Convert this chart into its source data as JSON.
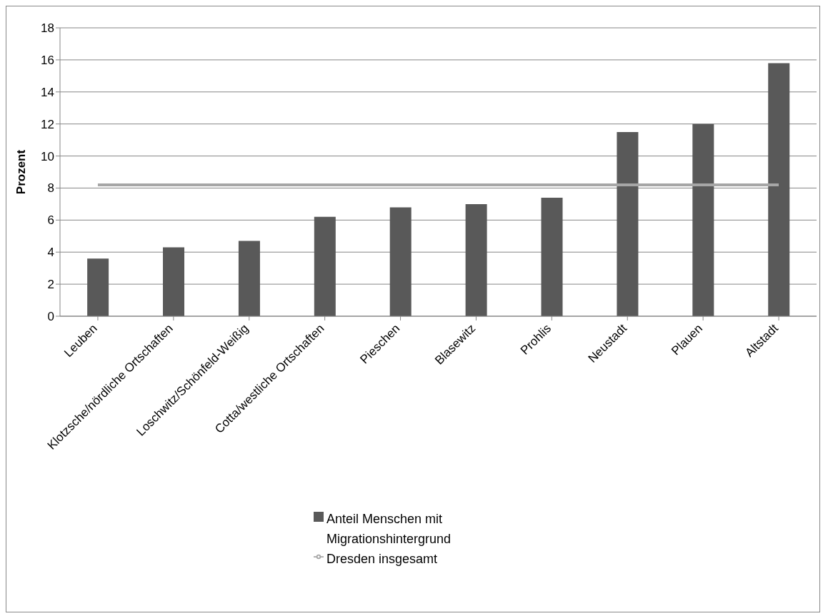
{
  "chart_data": {
    "type": "bar",
    "ylabel": "Prozent",
    "categories": [
      "Leuben",
      "Klotzsche/nördliche Ortschaften",
      "Loschwitz/Schönfeld-Weißig",
      "Cotta/westliche Ortschaften",
      "Pieschen",
      "Blasewitz",
      "Prohlis",
      "Neustadt",
      "Plauen",
      "Altstadt"
    ],
    "series": [
      {
        "name": "Anteil Menschen mit Migrationshintergrund",
        "color": "#595959",
        "values": [
          3.6,
          4.3,
          4.7,
          6.2,
          6.8,
          7.0,
          7.4,
          11.5,
          12.0,
          15.8
        ]
      },
      {
        "name": "Dresden insgesamt",
        "type": "line",
        "color": "#a6a6a6",
        "values": [
          8.2,
          8.2,
          8.2,
          8.2,
          8.2,
          8.2,
          8.2,
          8.2,
          8.2,
          8.2
        ]
      }
    ],
    "ylim": [
      0,
      18
    ],
    "yticks": [
      0,
      2,
      4,
      6,
      8,
      10,
      12,
      14,
      16,
      18
    ],
    "grid": "y",
    "legend": "bottom",
    "marker": "none"
  }
}
